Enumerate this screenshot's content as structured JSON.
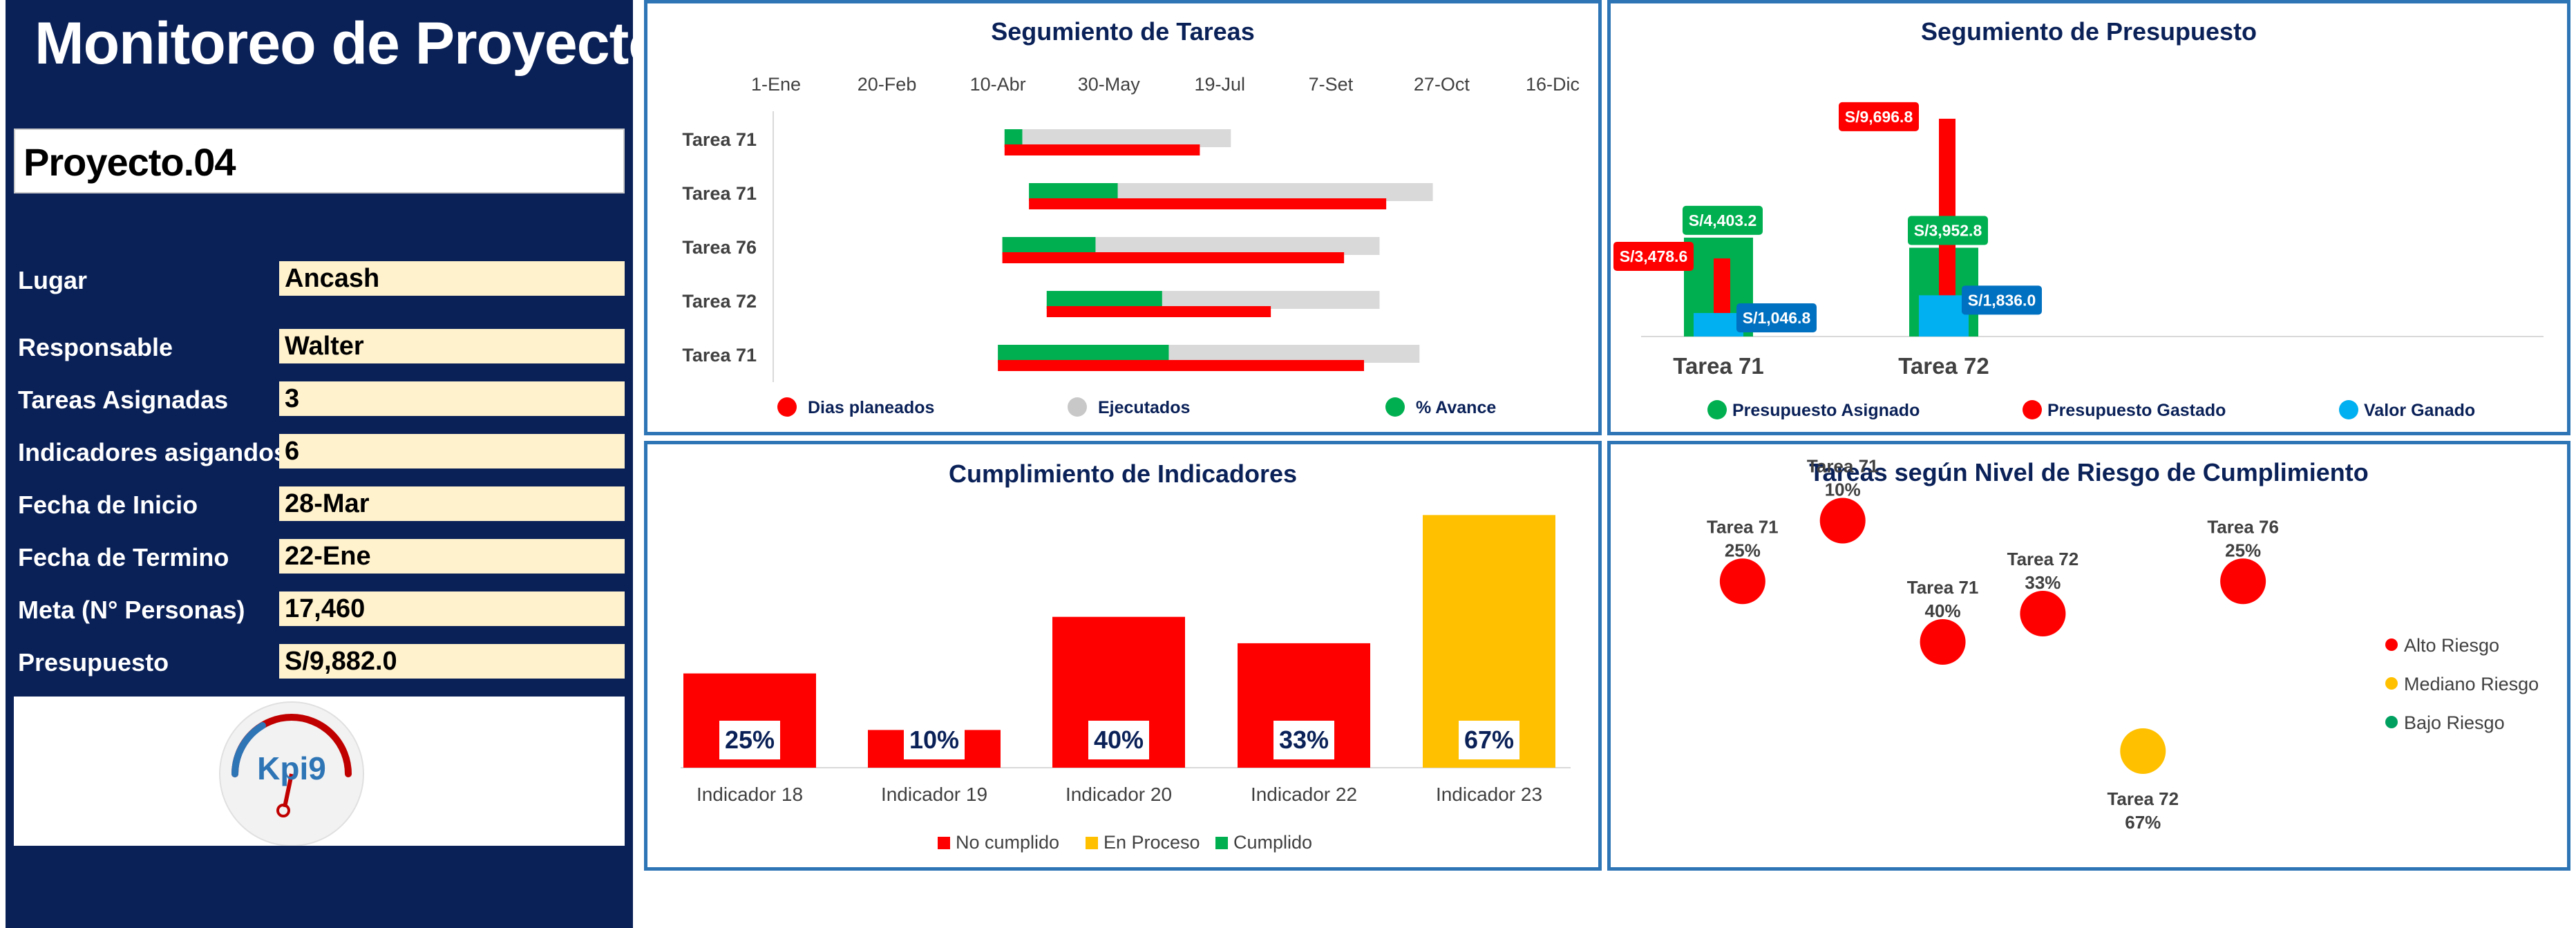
{
  "sidebar": {
    "title": "Monitoreo de Proyecto",
    "project": "Proyecto.04",
    "fields": [
      {
        "label": "Lugar",
        "value": "Ancash"
      },
      {
        "label": "Responsable",
        "value": "Walter"
      },
      {
        "label": "Tareas Asignadas",
        "value": "3"
      },
      {
        "label": "Indicadores asigandos",
        "value": "6"
      },
      {
        "label": "Fecha de Inicio",
        "value": "28-Mar"
      },
      {
        "label": "Fecha de Termino",
        "value": "22-Ene"
      },
      {
        "label": "Meta (N° Personas)",
        "value": "17,460"
      },
      {
        "label": "Presupuesto",
        "value": "S/9,882.0"
      }
    ],
    "logo_text": "Kpi9"
  },
  "colors": {
    "navy": "#0a2158",
    "panel_border": "#2e75b6",
    "red": "#ff0000",
    "green": "#00b050",
    "gray": "#d9d9d9",
    "cyan": "#00b0f0",
    "blue_label": "#0070c0",
    "amber": "#ffc000",
    "risk_green": "#00a060"
  },
  "charts": {
    "gantt": {
      "type": "bar",
      "title": "Segumiento de Tareas",
      "x_ticks": [
        "1-Ene",
        "20-Feb",
        "10-Abr",
        "30-May",
        "19-Jul",
        "7-Set",
        "27-Oct",
        "16-Dic"
      ],
      "xlim": [
        0,
        350
      ],
      "categories": [
        "Tarea 71",
        "Tarea 71",
        "Tarea 76",
        "Tarea 72",
        "Tarea 71"
      ],
      "start_day": [
        103,
        114,
        102,
        122,
        100
      ],
      "series": [
        {
          "name": "Dias planeados",
          "values": [
            88,
            161,
            154,
            101,
            165
          ]
        },
        {
          "name": "Ejecutados",
          "values": [
            102,
            182,
            170,
            150,
            190
          ]
        },
        {
          "name": "% Avance",
          "values": [
            8,
            40,
            42,
            52,
            77
          ]
        }
      ],
      "legend": [
        "Dias planeados",
        "Ejecutados",
        "% Avance"
      ]
    },
    "budget": {
      "type": "bar",
      "title": "Segumiento de Presupuesto",
      "categories": [
        "Tarea 71",
        "Tarea 72"
      ],
      "ylim": [
        0,
        12000
      ],
      "series": [
        {
          "name": "Presupuesto Asignado",
          "values": [
            4403.2,
            3952.8
          ],
          "labels": [
            "S/4,403.2",
            "S/3,952.8"
          ]
        },
        {
          "name": "Presupuesto Gastado",
          "values": [
            3478.6,
            9696.8
          ],
          "labels": [
            "S/3,478.6",
            "S/9,696.8"
          ]
        },
        {
          "name": "Valor Ganado",
          "values": [
            1046.8,
            1836.0
          ],
          "labels": [
            "S/1,046.8",
            "S/1,836.0"
          ]
        }
      ],
      "legend": [
        "Presupuesto Asignado",
        "Presupuesto Gastado",
        "Valor Ganado"
      ]
    },
    "indicators": {
      "type": "bar",
      "title": "Cumplimiento de Indicadores",
      "categories": [
        "Indicador 18",
        "Indicador 19",
        "Indicador 20",
        "Indicador 22",
        "Indicador 23"
      ],
      "values": [
        25,
        10,
        40,
        33,
        67
      ],
      "labels": [
        "25%",
        "10%",
        "40%",
        "33%",
        "67%"
      ],
      "status": [
        "No cumplido",
        "No cumplido",
        "No cumplido",
        "No cumplido",
        "En Proceso"
      ],
      "ylim": [
        0,
        70
      ],
      "legend": [
        "No cumplido",
        "En Proceso",
        "Cumplido"
      ]
    },
    "risk": {
      "type": "scatter",
      "title": "Tareas según Nivel de Riesgo de Cumplimiento",
      "points": [
        {
          "task": "Tarea 71",
          "pct": "25%",
          "x": 1,
          "y": 25,
          "risk": "Alto Riesgo"
        },
        {
          "task": "Tarea 71",
          "pct": "10%",
          "x": 2,
          "y": 10,
          "risk": "Alto Riesgo"
        },
        {
          "task": "Tarea 71",
          "pct": "40%",
          "x": 3,
          "y": 40,
          "risk": "Alto Riesgo"
        },
        {
          "task": "Tarea 72",
          "pct": "33%",
          "x": 4,
          "y": 33,
          "risk": "Alto Riesgo"
        },
        {
          "task": "Tarea 72",
          "pct": "67%",
          "x": 5,
          "y": 67,
          "risk": "Mediano Riesgo"
        },
        {
          "task": "Tarea 76",
          "pct": "25%",
          "x": 6,
          "y": 25,
          "risk": "Alto Riesgo"
        }
      ],
      "xlim": [
        0,
        7
      ],
      "ylim": [
        0,
        80
      ],
      "legend": [
        "Alto Riesgo",
        "Mediano Riesgo",
        "Bajo Riesgo"
      ]
    }
  }
}
